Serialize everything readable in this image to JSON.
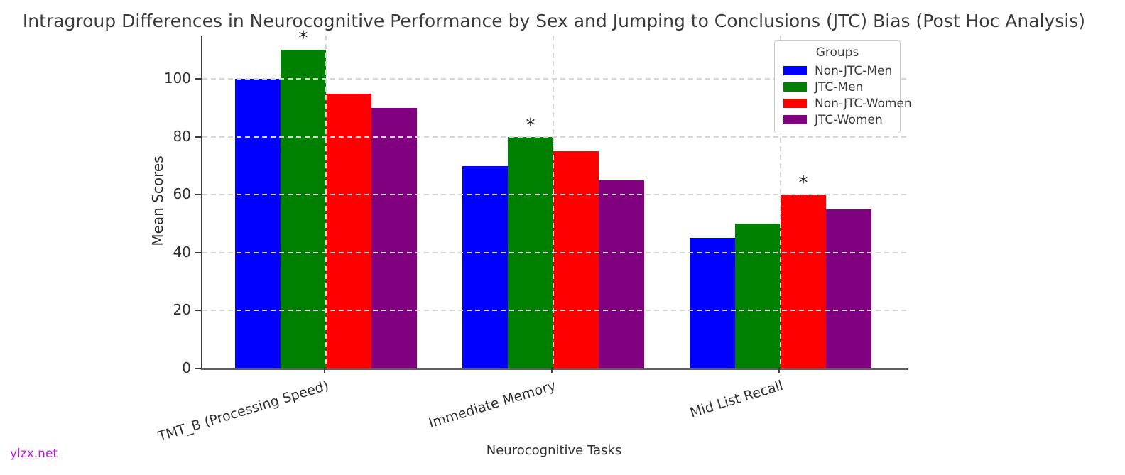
{
  "watermark": {
    "text": "ylzx.net",
    "color": "#c218ea"
  },
  "chart_data": {
    "type": "bar",
    "title": "Intragroup Differences in Neurocognitive Performance by Sex and Jumping to Conclusions (JTC) Bias (Post Hoc Analysis)",
    "xlabel": "Neurocognitive Tasks",
    "ylabel": "Mean Scores",
    "categories": [
      "TMT_B (Processing Speed)",
      "Immediate Memory",
      "Mid List Recall"
    ],
    "series": [
      {
        "name": "Non-JTC-Men",
        "color": "#0000ff",
        "values": [
          100,
          70,
          45
        ]
      },
      {
        "name": "JTC-Men",
        "color": "#008000",
        "values": [
          110,
          80,
          50
        ]
      },
      {
        "name": "Non-JTC-Women",
        "color": "#ff0000",
        "values": [
          95,
          75,
          60
        ]
      },
      {
        "name": "JTC-Women",
        "color": "#800080",
        "values": [
          90,
          65,
          55
        ]
      }
    ],
    "ylim": [
      0,
      115
    ],
    "yticks": [
      0,
      20,
      40,
      60,
      80,
      100
    ],
    "grid": true,
    "grid_style": "dashed",
    "grid_over_bars": true,
    "legend": {
      "title": "Groups",
      "position": "upper right"
    },
    "significance_markers": [
      {
        "category_index": 0,
        "series_index": 1,
        "symbol": "*"
      },
      {
        "category_index": 1,
        "series_index": 1,
        "symbol": "*"
      },
      {
        "category_index": 2,
        "series_index": 2,
        "symbol": "*"
      }
    ]
  }
}
